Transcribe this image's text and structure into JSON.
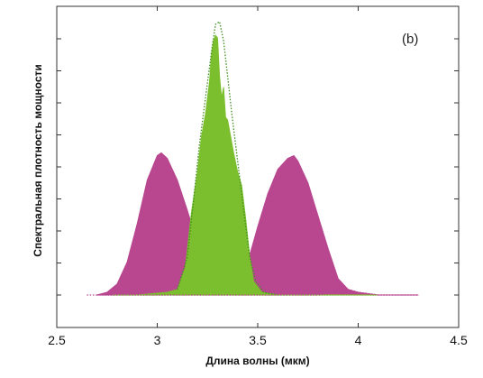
{
  "chart_data": {
    "type": "area",
    "panel_label": "(b)",
    "xlabel": "Длина волны (мкм)",
    "ylabel": "Спектральная плотность мощности",
    "xlim": [
      2.5,
      4.5
    ],
    "ylim": [
      0,
      1
    ],
    "x_ticks": [
      "2.5",
      "3",
      "3.5",
      "4",
      "4.5"
    ],
    "y_tick_count": 9,
    "grid": false,
    "colors": {
      "magenta": "#b8478f",
      "green": "#7cbf2e",
      "green_dotted": "#3f8f1f",
      "magenta_dotted": "#b8478f",
      "frame": "#333333"
    },
    "series": [
      {
        "style": "filled",
        "color": "magenta",
        "x": [
          2.7,
          2.75,
          2.8,
          2.85,
          2.9,
          2.95,
          3.0,
          3.02,
          3.05,
          3.1,
          3.15,
          3.2,
          3.25,
          3.3,
          3.35,
          3.4,
          3.45,
          3.5,
          3.55,
          3.6,
          3.65,
          3.68,
          3.7,
          3.75,
          3.8,
          3.85,
          3.9,
          3.95,
          4.0,
          4.1,
          4.2,
          4.3
        ],
        "y": [
          0.0,
          0.01,
          0.04,
          0.12,
          0.26,
          0.42,
          0.51,
          0.52,
          0.5,
          0.42,
          0.31,
          0.19,
          0.1,
          0.04,
          0.01,
          0.03,
          0.12,
          0.25,
          0.37,
          0.46,
          0.5,
          0.51,
          0.49,
          0.41,
          0.29,
          0.17,
          0.06,
          0.02,
          0.01,
          0.0,
          0.0,
          0.0
        ]
      },
      {
        "style": "filled",
        "color": "green",
        "x": [
          2.78,
          2.9,
          3.05,
          3.1,
          3.14,
          3.17,
          3.2,
          3.22,
          3.24,
          3.26,
          3.27,
          3.28,
          3.29,
          3.3,
          3.31,
          3.32,
          3.33,
          3.34,
          3.35,
          3.36,
          3.38,
          3.4,
          3.42,
          3.44,
          3.46,
          3.48,
          3.52,
          3.6,
          3.8,
          4.0,
          4.1
        ],
        "y": [
          0.0,
          0.0,
          0.01,
          0.02,
          0.1,
          0.3,
          0.45,
          0.58,
          0.66,
          0.78,
          0.88,
          0.93,
          0.95,
          0.94,
          0.8,
          0.72,
          0.76,
          0.65,
          0.64,
          0.6,
          0.52,
          0.45,
          0.4,
          0.28,
          0.14,
          0.05,
          0.01,
          0.0,
          0.0,
          0.0,
          0.0
        ]
      },
      {
        "style": "dotted",
        "color": "green_dotted",
        "x": [
          3.1,
          3.15,
          3.18,
          3.21,
          3.24,
          3.27,
          3.29,
          3.31,
          3.33,
          3.35,
          3.37,
          3.4,
          3.43,
          3.46,
          3.49,
          3.53,
          3.6
        ],
        "y": [
          0.02,
          0.14,
          0.34,
          0.55,
          0.72,
          0.89,
          0.99,
          1.0,
          0.93,
          0.8,
          0.67,
          0.49,
          0.31,
          0.14,
          0.05,
          0.01,
          0.0
        ]
      },
      {
        "style": "dotted",
        "color": "magenta_dotted",
        "x": [
          2.65,
          2.75,
          2.85,
          3.0,
          3.2,
          3.4,
          3.6,
          3.8,
          3.9,
          3.95,
          4.0,
          4.1,
          4.2,
          4.3
        ],
        "y": [
          0.0,
          0.0,
          0.0,
          0.0,
          0.0,
          0.0,
          0.0,
          0.0,
          0.01,
          0.02,
          0.01,
          0.0,
          0.0,
          0.0
        ]
      }
    ]
  }
}
